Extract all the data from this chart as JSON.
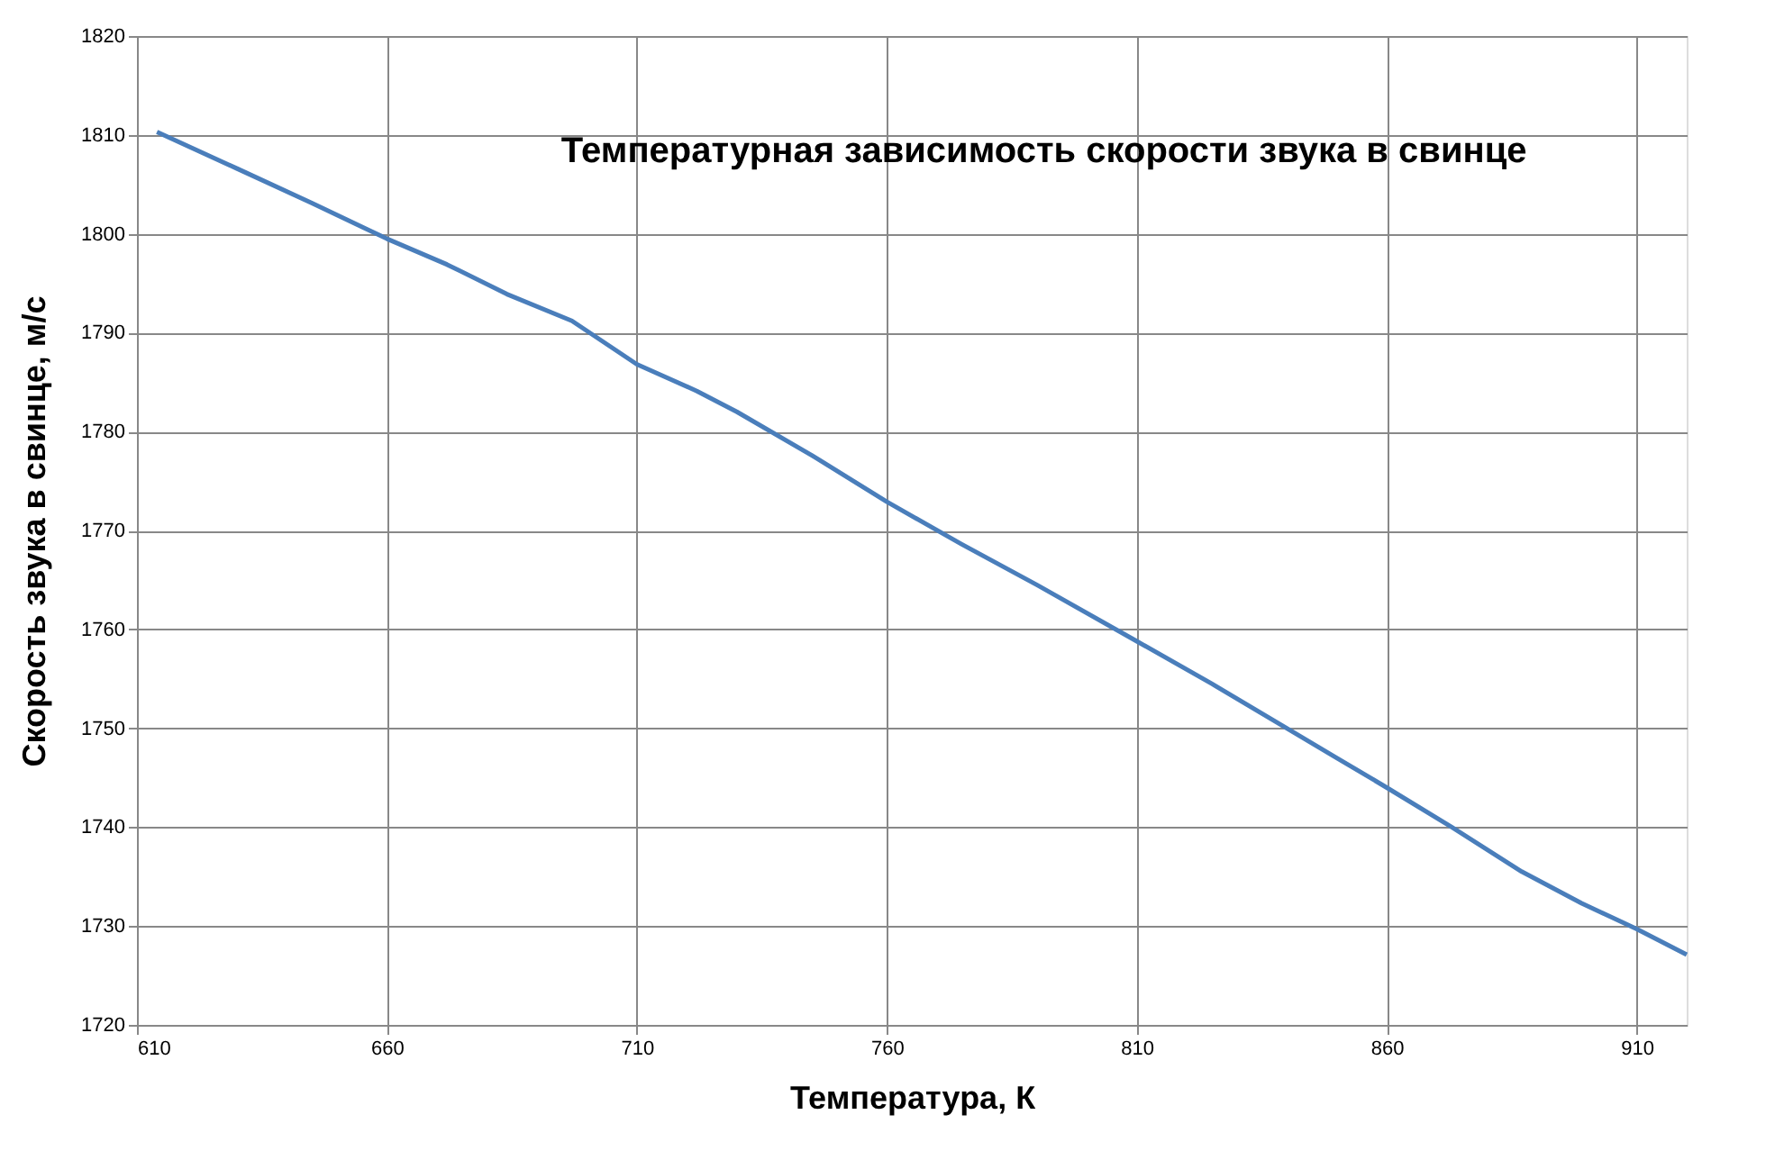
{
  "chart_data": {
    "type": "line",
    "title": "Температурная зависимость скорости звука в свинце",
    "xlabel": "Температура, К",
    "ylabel": "Скорость звука в свинце, м/с",
    "x": [
      614,
      630,
      645,
      660,
      672,
      684,
      697,
      710,
      722,
      730,
      745,
      760,
      775,
      790,
      810,
      825,
      840,
      850,
      860,
      873,
      887,
      899,
      910,
      920
    ],
    "series": [
      {
        "color": "#4a7ebb",
        "values": [
          1810.3,
          1806.6,
          1803.1,
          1799.5,
          1796.9,
          1793.9,
          1791.2,
          1786.8,
          1784.1,
          1782.0,
          1777.6,
          1772.9,
          1768.6,
          1764.5,
          1758.8,
          1754.5,
          1750.0,
          1747.0,
          1744.0,
          1740.0,
          1735.5,
          1732.3,
          1729.7,
          1727.1
        ]
      }
    ],
    "xlim": [
      610,
      920
    ],
    "xticks": [
      610,
      660,
      710,
      760,
      810,
      860,
      910
    ],
    "ylim": [
      1720,
      1820
    ],
    "yticks": [
      1720,
      1730,
      1740,
      1750,
      1760,
      1770,
      1780,
      1790,
      1800,
      1810,
      1820
    ],
    "grid": true,
    "legend": false,
    "marker": "none",
    "line_style": "solid"
  }
}
